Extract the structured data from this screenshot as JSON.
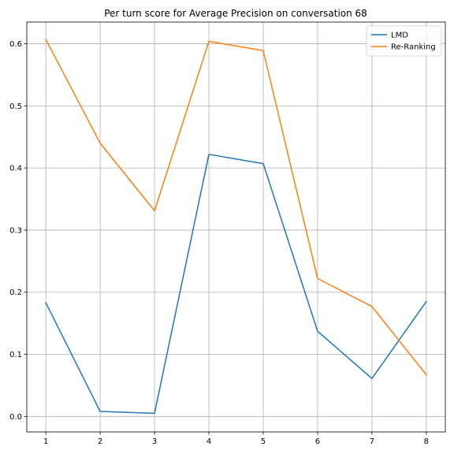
{
  "chart_data": {
    "type": "line",
    "title": "Per turn score for Average Precision on conversation 68",
    "xlabel": "",
    "ylabel": "",
    "x": [
      1,
      2,
      3,
      4,
      5,
      6,
      7,
      8
    ],
    "xlim": [
      0.65,
      8.35
    ],
    "ylim": [
      -0.025,
      0.635
    ],
    "xticks": [
      1,
      2,
      3,
      4,
      5,
      6,
      7,
      8
    ],
    "yticks": [
      0.0,
      0.1,
      0.2,
      0.3,
      0.4,
      0.5,
      0.6
    ],
    "ytick_labels": [
      "0.0",
      "0.1",
      "0.2",
      "0.3",
      "0.4",
      "0.5",
      "0.6"
    ],
    "grid": true,
    "legend_position": "top-right",
    "series": [
      {
        "name": "LMD",
        "color": "#1f77b4",
        "values": [
          0.183,
          0.008,
          0.005,
          0.422,
          0.407,
          0.137,
          0.061,
          0.185
        ]
      },
      {
        "name": "Re-Ranking",
        "color": "#ff7f0e",
        "values": [
          0.607,
          0.44,
          0.331,
          0.604,
          0.589,
          0.222,
          0.177,
          0.067
        ]
      }
    ]
  }
}
